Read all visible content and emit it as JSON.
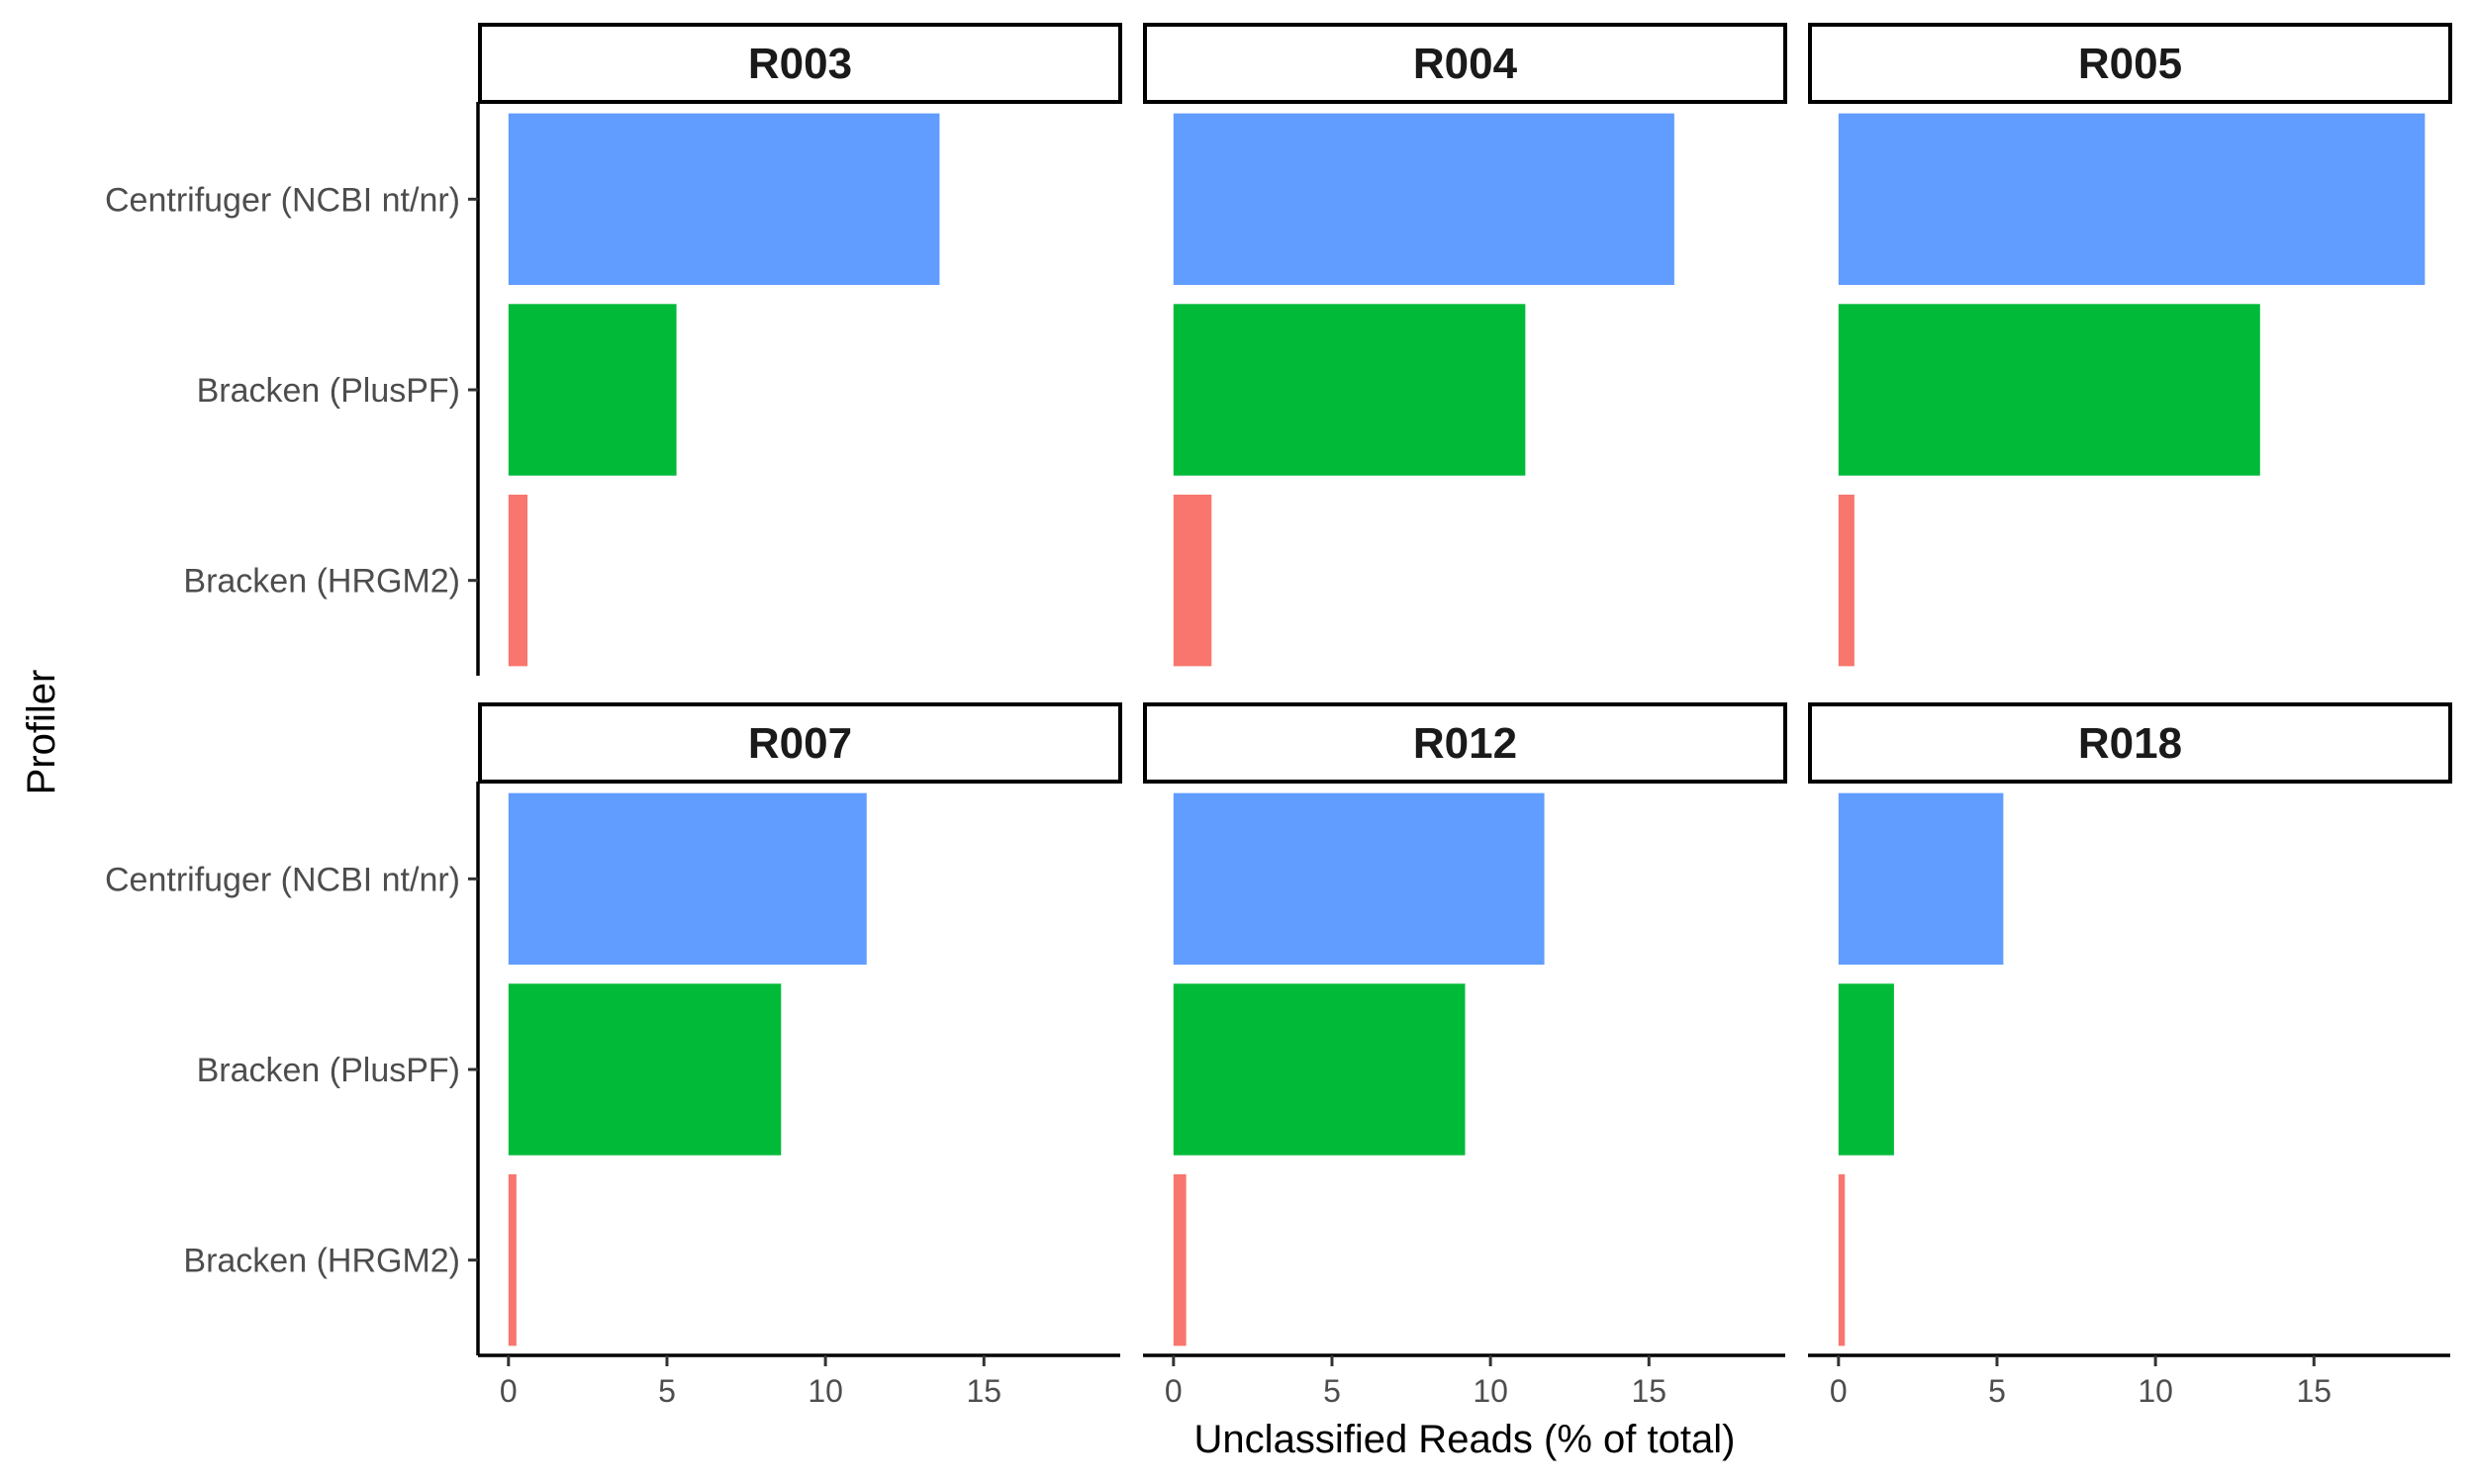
{
  "chart_data": {
    "type": "bar",
    "orientation": "horizontal",
    "facets": [
      {
        "title": "R003",
        "values": {
          "Centrifuger (NCBI nt/nr)": 13.6,
          "Bracken (PlusPF)": 5.3,
          "Bracken (HRGM2)": 0.6
        }
      },
      {
        "title": "R004",
        "values": {
          "Centrifuger (NCBI nt/nr)": 15.8,
          "Bracken (PlusPF)": 11.1,
          "Bracken (HRGM2)": 1.2
        }
      },
      {
        "title": "R005",
        "values": {
          "Centrifuger (NCBI nt/nr)": 18.5,
          "Bracken (PlusPF)": 13.3,
          "Bracken (HRGM2)": 0.5
        }
      },
      {
        "title": "R007",
        "values": {
          "Centrifuger (NCBI nt/nr)": 11.3,
          "Bracken (PlusPF)": 8.6,
          "Bracken (HRGM2)": 0.25
        }
      },
      {
        "title": "R012",
        "values": {
          "Centrifuger (NCBI nt/nr)": 11.7,
          "Bracken (PlusPF)": 9.2,
          "Bracken (HRGM2)": 0.4
        }
      },
      {
        "title": "R018",
        "values": {
          "Centrifuger (NCBI nt/nr)": 5.2,
          "Bracken (PlusPF)": 1.75,
          "Bracken (HRGM2)": 0.2
        }
      }
    ],
    "categories": [
      "Centrifuger (NCBI nt/nr)",
      "Bracken (PlusPF)",
      "Bracken (HRGM2)"
    ],
    "category_colors": {
      "Centrifuger (NCBI nt/nr)": "#619CFF",
      "Bracken (PlusPF)": "#00BA38",
      "Bracken (HRGM2)": "#F8766D"
    },
    "xlabel": "Unclassified Reads (% of total)",
    "ylabel": "Profiler",
    "xlim": [
      -0.9,
      19.3
    ],
    "xticks": [
      0,
      5,
      10,
      15
    ],
    "xtick_labels": [
      "0",
      "5",
      "10",
      "15"
    ],
    "grid": false,
    "legend": "none"
  }
}
